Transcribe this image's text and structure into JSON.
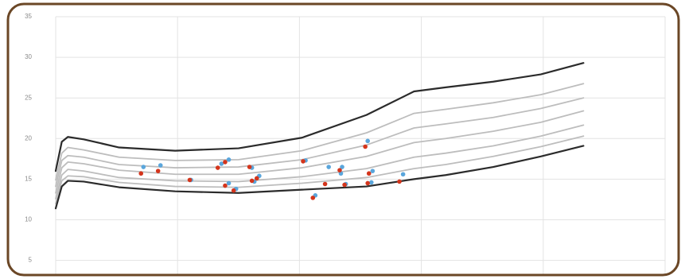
{
  "chart_data": {
    "type": "line",
    "x": [
      0,
      0.05,
      0.1,
      0.23,
      0.52,
      0.98,
      1.5,
      2.02,
      2.55,
      2.94,
      3.2,
      3.59,
      3.98,
      4.33
    ],
    "xlim": [
      0,
      5
    ],
    "xticks": [
      0,
      1,
      2,
      3,
      4,
      5
    ],
    "ylim": [
      3,
      35
    ],
    "yticks": [
      5,
      10,
      15,
      20,
      25,
      30,
      35
    ],
    "grid": true,
    "series": [
      {
        "type": "line",
        "color": "#2b2b2b",
        "values": [
          16.0,
          19.6,
          20.2,
          19.9,
          18.9,
          18.5,
          18.8,
          20.1,
          22.9,
          25.8,
          26.3,
          27.0,
          27.9,
          29.3
        ]
      },
      {
        "type": "line",
        "color": "#bdbdbd",
        "values": [
          14.9,
          18.2,
          18.9,
          18.6,
          17.7,
          17.3,
          17.4,
          18.5,
          20.7,
          23.1,
          23.6,
          24.4,
          25.4,
          26.75
        ]
      },
      {
        "type": "line",
        "color": "#bdbdbd",
        "values": [
          14.1,
          17.3,
          17.9,
          17.7,
          16.8,
          16.4,
          16.5,
          17.4,
          19.2,
          21.3,
          21.8,
          22.6,
          23.7,
          25.0
        ]
      },
      {
        "type": "line",
        "color": "#bdbdbd",
        "values": [
          13.3,
          16.4,
          17.1,
          16.9,
          16.1,
          15.6,
          15.6,
          16.4,
          17.8,
          19.5,
          20.0,
          20.9,
          22.0,
          23.4
        ]
      },
      {
        "type": "line",
        "color": "#bdbdbd",
        "values": [
          12.6,
          15.5,
          16.2,
          16.0,
          15.2,
          14.8,
          14.7,
          15.3,
          16.3,
          17.7,
          18.2,
          19.1,
          20.3,
          21.65
        ]
      },
      {
        "type": "line",
        "color": "#bdbdbd",
        "values": [
          12.0,
          14.8,
          15.4,
          15.3,
          14.6,
          14.1,
          14.0,
          14.5,
          15.2,
          16.3,
          16.8,
          17.8,
          19.0,
          20.3
        ]
      },
      {
        "type": "line",
        "color": "#2b2b2b",
        "values": [
          11.4,
          14.1,
          14.8,
          14.7,
          14.0,
          13.5,
          13.3,
          13.7,
          14.1,
          15.0,
          15.5,
          16.5,
          17.8,
          19.1
        ]
      },
      {
        "type": "scatter",
        "color": "#5aa6dc",
        "x": [
          0.72,
          0.86,
          1.11,
          1.36,
          1.42,
          1.42,
          1.48,
          1.61,
          1.67,
          1.63,
          2.05,
          2.24,
          2.35,
          2.34,
          2.38,
          2.13,
          2.56,
          2.6,
          2.59,
          2.85
        ],
        "values": [
          16.5,
          16.7,
          14.9,
          16.9,
          17.4,
          14.5,
          13.8,
          16.4,
          15.4,
          14.7,
          17.3,
          16.5,
          16.5,
          15.7,
          14.4,
          13.0,
          19.7,
          16.0,
          14.6,
          15.6
        ]
      },
      {
        "type": "scatter",
        "color": "#d4351c",
        "x": [
          0.7,
          0.84,
          1.1,
          1.33,
          1.39,
          1.39,
          1.46,
          1.59,
          1.65,
          1.61,
          2.03,
          2.21,
          2.33,
          2.37,
          2.11,
          2.54,
          2.57,
          2.56,
          2.82
        ],
        "values": [
          15.7,
          16.0,
          14.9,
          16.4,
          17.1,
          14.2,
          13.6,
          16.5,
          15.1,
          14.8,
          17.2,
          14.4,
          16.1,
          14.3,
          12.7,
          19.0,
          15.7,
          14.5,
          14.7
        ]
      }
    ]
  }
}
